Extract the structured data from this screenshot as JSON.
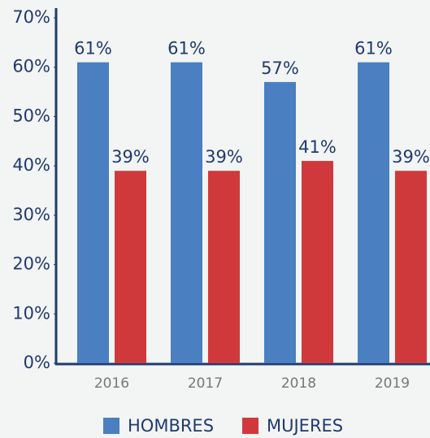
{
  "chart_data": {
    "type": "bar",
    "categories": [
      "2016",
      "2017",
      "2018",
      "2019"
    ],
    "series": [
      {
        "name": "HOMBRES",
        "color": "#4a7fc1",
        "values": [
          61,
          61,
          57,
          61
        ],
        "value_labels": [
          "61%",
          "61%",
          "57%",
          "61%"
        ]
      },
      {
        "name": "MUJERES",
        "color": "#d0393b",
        "values": [
          39,
          39,
          41,
          39
        ],
        "value_labels": [
          "39%",
          "39%",
          "41%",
          "39%"
        ]
      }
    ],
    "ylim": [
      0,
      70
    ],
    "yticks": [
      {
        "value": 0,
        "label": "0%"
      },
      {
        "value": 10,
        "label": "10%"
      },
      {
        "value": 20,
        "label": "20%"
      },
      {
        "value": 30,
        "label": "30%"
      },
      {
        "value": 40,
        "label": "40%"
      },
      {
        "value": 50,
        "label": "50%"
      },
      {
        "value": 60,
        "label": "60%"
      },
      {
        "value": 70,
        "label": "70%"
      }
    ],
    "grid": false,
    "legend": "bottom"
  }
}
